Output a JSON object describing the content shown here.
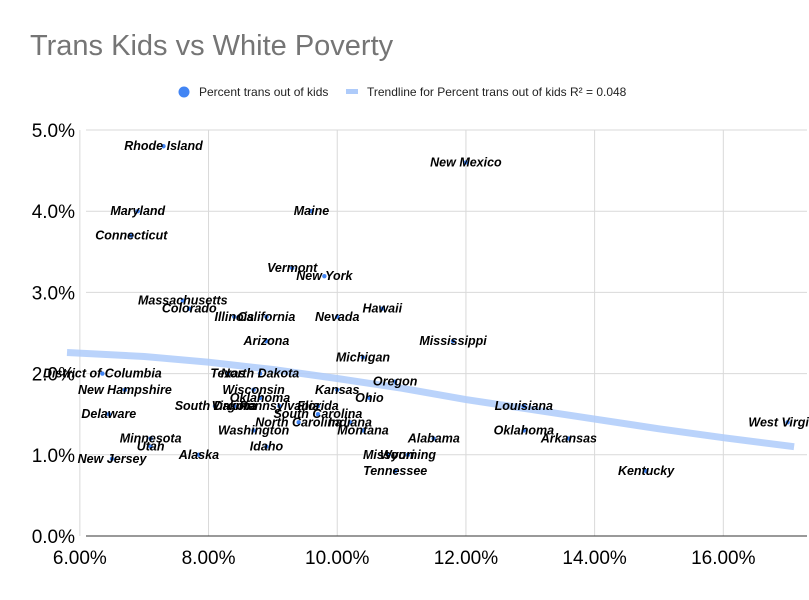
{
  "chart_data": {
    "type": "scatter",
    "title": "Trans Kids vs White Poverty",
    "xlabel": "",
    "ylabel": "",
    "xlim": [
      0.06,
      0.17
    ],
    "ylim": [
      0,
      0.05
    ],
    "x_ticks": [
      "6.00%",
      "8.00%",
      "10.00%",
      "12.00%",
      "14.00%",
      "16.00%"
    ],
    "y_ticks": [
      "0.0%",
      "1.0%",
      "2.0%",
      "3.0%",
      "4.0%",
      "5.0%"
    ],
    "grid": true,
    "legend_position": "top",
    "series": [
      {
        "name": "Percent trans out of kids",
        "color": "#4285f4",
        "points": [
          {
            "label": "Rhode Island",
            "x": 0.073,
            "y": 0.048
          },
          {
            "label": "New Mexico",
            "x": 0.12,
            "y": 0.046
          },
          {
            "label": "Maryland",
            "x": 0.069,
            "y": 0.04
          },
          {
            "label": "Maine",
            "x": 0.096,
            "y": 0.04
          },
          {
            "label": "Connecticut",
            "x": 0.068,
            "y": 0.037
          },
          {
            "label": "Vermont",
            "x": 0.093,
            "y": 0.033
          },
          {
            "label": "New York",
            "x": 0.098,
            "y": 0.032
          },
          {
            "label": "Massachusetts",
            "x": 0.076,
            "y": 0.029
          },
          {
            "label": "Hawaii",
            "x": 0.107,
            "y": 0.028
          },
          {
            "label": "Colorado",
            "x": 0.077,
            "y": 0.028
          },
          {
            "label": "Illinois",
            "x": 0.084,
            "y": 0.027
          },
          {
            "label": "California",
            "x": 0.089,
            "y": 0.027
          },
          {
            "label": "Nevada",
            "x": 0.1,
            "y": 0.027
          },
          {
            "label": "Arizona",
            "x": 0.089,
            "y": 0.024
          },
          {
            "label": "Mississippi",
            "x": 0.118,
            "y": 0.024
          },
          {
            "label": "Michigan",
            "x": 0.104,
            "y": 0.022
          },
          {
            "label": "District of Columbia",
            "x": 0.0635,
            "y": 0.02
          },
          {
            "label": "Texas",
            "x": 0.083,
            "y": 0.02
          },
          {
            "label": "North Dakota",
            "x": 0.088,
            "y": 0.02
          },
          {
            "label": "Oregon",
            "x": 0.109,
            "y": 0.019
          },
          {
            "label": "Wisconsin",
            "x": 0.087,
            "y": 0.018
          },
          {
            "label": "New Hampshire",
            "x": 0.067,
            "y": 0.018
          },
          {
            "label": "Kansas",
            "x": 0.1,
            "y": 0.018
          },
          {
            "label": "Ohio",
            "x": 0.105,
            "y": 0.017
          },
          {
            "label": "Oklahoma",
            "x": 0.088,
            "y": 0.017
          },
          {
            "label": "South Dakota",
            "x": 0.081,
            "y": 0.016
          },
          {
            "label": "Pennsylvania",
            "x": 0.091,
            "y": 0.016
          },
          {
            "label": "Florida",
            "x": 0.097,
            "y": 0.016
          },
          {
            "label": "Louisiana",
            "x": 0.129,
            "y": 0.016
          },
          {
            "label": "Virginia",
            "x": 0.084,
            "y": 0.016
          },
          {
            "label": "Delaware",
            "x": 0.0645,
            "y": 0.015
          },
          {
            "label": "West Virginia",
            "x": 0.17,
            "y": 0.014
          },
          {
            "label": "South Carolina",
            "x": 0.097,
            "y": 0.015
          },
          {
            "label": "North Carolina",
            "x": 0.094,
            "y": 0.014
          },
          {
            "label": "Indiana",
            "x": 0.102,
            "y": 0.014
          },
          {
            "label": "Oklahoma",
            "x": 0.129,
            "y": 0.013
          },
          {
            "label": "Washington",
            "x": 0.087,
            "y": 0.013
          },
          {
            "label": "Montana",
            "x": 0.104,
            "y": 0.013
          },
          {
            "label": "Arkansas",
            "x": 0.136,
            "y": 0.012
          },
          {
            "label": "Minnesota",
            "x": 0.071,
            "y": 0.012
          },
          {
            "label": "Alabama",
            "x": 0.115,
            "y": 0.012
          },
          {
            "label": "Idaho",
            "x": 0.089,
            "y": 0.011
          },
          {
            "label": "Utah",
            "x": 0.071,
            "y": 0.011
          },
          {
            "label": "Alaska",
            "x": 0.0785,
            "y": 0.01
          },
          {
            "label": "Wyoming",
            "x": 0.111,
            "y": 0.01
          },
          {
            "label": "Missouri",
            "x": 0.108,
            "y": 0.01
          },
          {
            "label": "New Jersey",
            "x": 0.065,
            "y": 0.0095
          },
          {
            "label": "Tennessee",
            "x": 0.109,
            "y": 0.008
          },
          {
            "label": "Kentucky",
            "x": 0.148,
            "y": 0.008
          }
        ]
      },
      {
        "name": "Trendline for Percent trans out of kids R² = 0.048",
        "color": "#aecbfa",
        "type": "line",
        "points": [
          {
            "x": 0.058,
            "y": 0.0226
          },
          {
            "x": 0.07,
            "y": 0.0221
          },
          {
            "x": 0.08,
            "y": 0.0214
          },
          {
            "x": 0.09,
            "y": 0.0205
          },
          {
            "x": 0.1,
            "y": 0.0194
          },
          {
            "x": 0.11,
            "y": 0.0182
          },
          {
            "x": 0.12,
            "y": 0.0168
          },
          {
            "x": 0.13,
            "y": 0.0156
          },
          {
            "x": 0.14,
            "y": 0.0144
          },
          {
            "x": 0.15,
            "y": 0.0132
          },
          {
            "x": 0.16,
            "y": 0.0121
          },
          {
            "x": 0.171,
            "y": 0.011
          }
        ]
      }
    ]
  }
}
